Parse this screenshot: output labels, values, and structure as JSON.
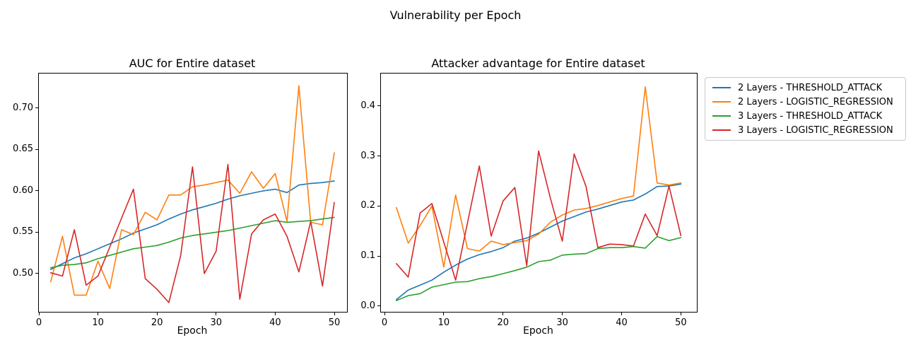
{
  "suptitle": "Vulnerability per Epoch",
  "colors": {
    "blue": "#1f77b4",
    "orange": "#ff7f0e",
    "green": "#2ca02c",
    "red": "#d62728"
  },
  "legend": {
    "entries": [
      {
        "label": "2 Layers - THRESHOLD_ATTACK",
        "color": "#1f77b4"
      },
      {
        "label": "2 Layers - LOGISTIC_REGRESSION",
        "color": "#ff7f0e"
      },
      {
        "label": "3 Layers - THRESHOLD_ATTACK",
        "color": "#2ca02c"
      },
      {
        "label": "3 Layers - LOGISTIC_REGRESSION",
        "color": "#d62728"
      }
    ]
  },
  "chart_data": [
    {
      "type": "line",
      "title": "AUC for Entire dataset",
      "xlabel": "Epoch",
      "legend_position": "outside upper right of figure",
      "grid": false,
      "x": [
        2,
        4,
        6,
        8,
        10,
        12,
        14,
        16,
        18,
        20,
        22,
        24,
        26,
        28,
        30,
        32,
        34,
        36,
        38,
        40,
        42,
        44,
        46,
        48,
        50
      ],
      "xlim": [
        0,
        52.15
      ],
      "ylim": [
        0.4538,
        0.7418
      ],
      "xticks": [
        0,
        10,
        20,
        30,
        40,
        50
      ],
      "xtick_labels": [
        "0",
        "10",
        "20",
        "30",
        "40",
        "50"
      ],
      "yticks": [
        0.5,
        0.55,
        0.6,
        0.65,
        0.7
      ],
      "ytick_labels": [
        "0.50",
        "0.55",
        "0.60",
        "0.65",
        "0.70"
      ],
      "series": [
        {
          "name": "2 Layers - THRESHOLD_ATTACK",
          "color": "#1f77b4",
          "values": [
            0.505,
            0.512,
            0.519,
            0.524,
            0.53,
            0.536,
            0.542,
            0.549,
            0.554,
            0.559,
            0.566,
            0.572,
            0.577,
            0.581,
            0.585,
            0.59,
            0.594,
            0.597,
            0.6,
            0.602,
            0.598,
            0.607,
            0.609,
            0.61,
            0.612
          ]
        },
        {
          "name": "2 Layers - LOGISTIC_REGRESSION",
          "color": "#ff7f0e",
          "values": [
            0.49,
            0.545,
            0.474,
            0.474,
            0.515,
            0.482,
            0.553,
            0.547,
            0.574,
            0.565,
            0.595,
            0.595,
            0.605,
            0.607,
            0.61,
            0.613,
            0.597,
            0.623,
            0.603,
            0.621,
            0.563,
            0.727,
            0.562,
            0.559,
            0.646
          ]
        },
        {
          "name": "3 Layers - THRESHOLD_ATTACK",
          "color": "#2ca02c",
          "values": [
            0.507,
            0.51,
            0.511,
            0.513,
            0.518,
            0.522,
            0.526,
            0.53,
            0.532,
            0.534,
            0.538,
            0.543,
            0.546,
            0.548,
            0.55,
            0.552,
            0.555,
            0.558,
            0.561,
            0.564,
            0.562,
            0.563,
            0.564,
            0.566,
            0.568
          ]
        },
        {
          "name": "3 Layers - LOGISTIC_REGRESSION",
          "color": "#d62728",
          "values": [
            0.501,
            0.497,
            0.553,
            0.486,
            0.497,
            0.532,
            0.567,
            0.602,
            0.494,
            0.481,
            0.465,
            0.522,
            0.629,
            0.5,
            0.527,
            0.632,
            0.469,
            0.548,
            0.565,
            0.572,
            0.545,
            0.502,
            0.563,
            0.485,
            0.586
          ]
        }
      ]
    },
    {
      "type": "line",
      "title": "Attacker advantage for Entire dataset",
      "xlabel": "Epoch",
      "grid": false,
      "x": [
        2,
        4,
        6,
        8,
        10,
        12,
        14,
        16,
        18,
        20,
        22,
        24,
        26,
        28,
        30,
        32,
        34,
        36,
        38,
        40,
        42,
        44,
        46,
        48,
        50
      ],
      "xlim": [
        -0.6,
        52.7
      ],
      "ylim": [
        -0.0113,
        0.4647
      ],
      "xticks": [
        0,
        10,
        20,
        30,
        40,
        50
      ],
      "xtick_labels": [
        "0",
        "10",
        "20",
        "30",
        "40",
        "50"
      ],
      "yticks": [
        0.0,
        0.1,
        0.2,
        0.3,
        0.4
      ],
      "ytick_labels": [
        "0.0",
        "0.1",
        "0.2",
        "0.3",
        "0.4"
      ],
      "series": [
        {
          "name": "2 Layers - THRESHOLD_ATTACK",
          "color": "#1f77b4",
          "values": [
            0.013,
            0.032,
            0.042,
            0.052,
            0.068,
            0.082,
            0.094,
            0.103,
            0.109,
            0.117,
            0.13,
            0.136,
            0.146,
            0.158,
            0.17,
            0.179,
            0.188,
            0.194,
            0.201,
            0.208,
            0.212,
            0.224,
            0.239,
            0.24,
            0.244
          ]
        },
        {
          "name": "2 Layers - LOGISTIC_REGRESSION",
          "color": "#ff7f0e",
          "values": [
            0.197,
            0.126,
            0.161,
            0.2,
            0.078,
            0.222,
            0.115,
            0.11,
            0.13,
            0.123,
            0.127,
            0.131,
            0.144,
            0.168,
            0.182,
            0.192,
            0.195,
            0.201,
            0.208,
            0.215,
            0.22,
            0.438,
            0.246,
            0.242,
            0.246
          ]
        },
        {
          "name": "3 Layers - THRESHOLD_ATTACK",
          "color": "#2ca02c",
          "values": [
            0.011,
            0.021,
            0.025,
            0.038,
            0.043,
            0.048,
            0.049,
            0.055,
            0.059,
            0.065,
            0.071,
            0.078,
            0.089,
            0.092,
            0.102,
            0.104,
            0.105,
            0.115,
            0.117,
            0.117,
            0.119,
            0.116,
            0.139,
            0.131,
            0.137
          ]
        },
        {
          "name": "3 Layers - LOGISTIC_REGRESSION",
          "color": "#d62728",
          "values": [
            0.085,
            0.058,
            0.186,
            0.205,
            0.128,
            0.052,
            0.166,
            0.28,
            0.14,
            0.21,
            0.237,
            0.081,
            0.31,
            0.215,
            0.13,
            0.304,
            0.239,
            0.117,
            0.124,
            0.123,
            0.12,
            0.184,
            0.141,
            0.24,
            0.141
          ]
        }
      ]
    }
  ]
}
